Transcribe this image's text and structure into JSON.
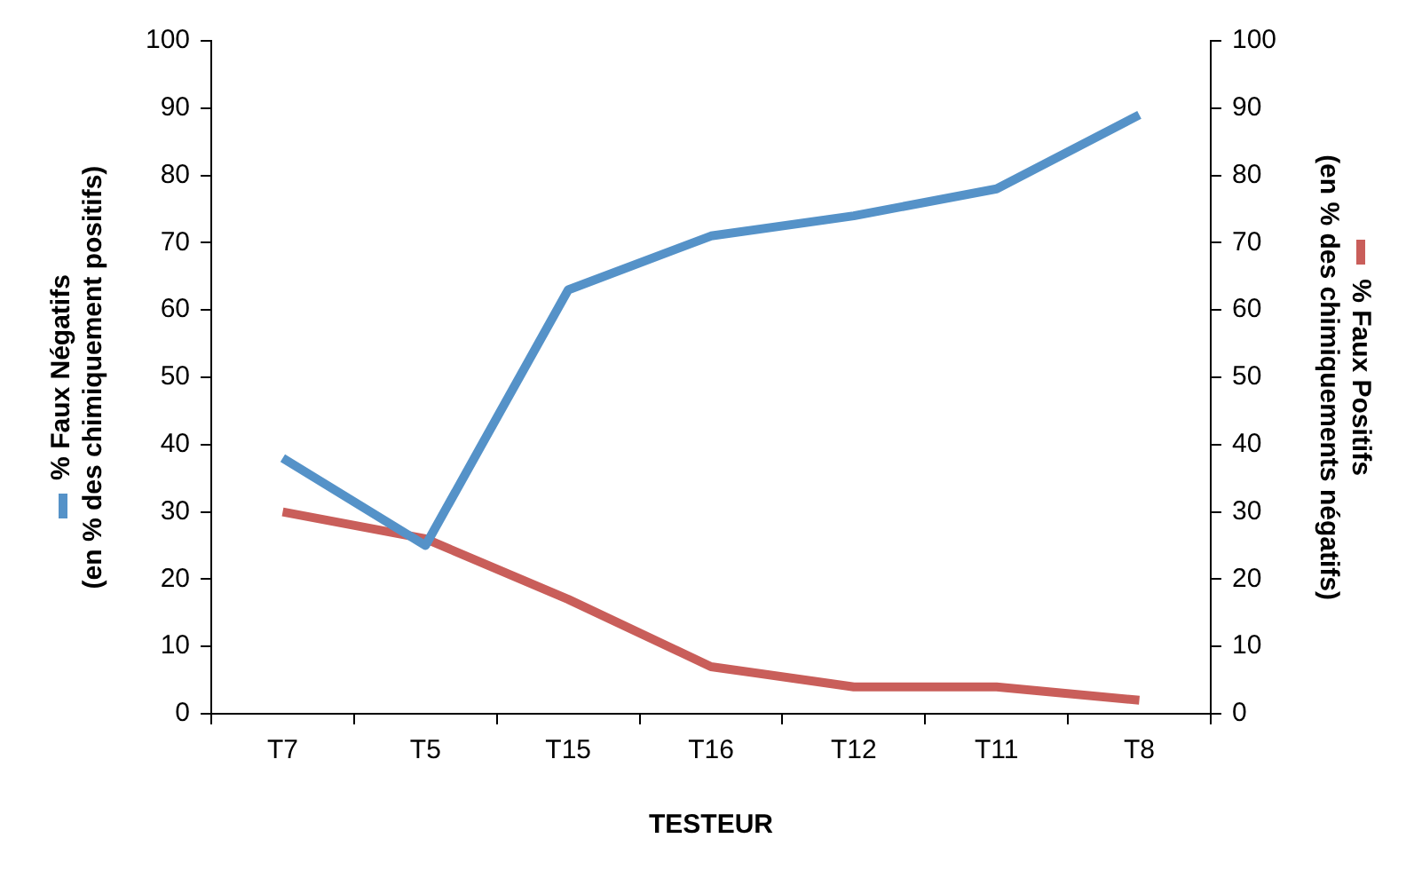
{
  "chart_data": {
    "type": "line",
    "xlabel": "TESTEUR",
    "ylabel": "% Faux Négatifs\n(en % des chimiquement positifs)",
    "y2label": "% Faux Positifs\n(en % des chimiquements négatifs)",
    "categories": [
      "T7",
      "T5",
      "T15",
      "T16",
      "T12",
      "T11",
      "T8"
    ],
    "series": [
      {
        "color": "#5592c8",
        "values": [
          38,
          25,
          63,
          71,
          74,
          78,
          89
        ]
      },
      {
        "color": "#c95e5a",
        "axis": "y2",
        "values": [
          30,
          26,
          17,
          7,
          4,
          4,
          2
        ]
      }
    ],
    "ylim": [
      0,
      100
    ],
    "yticks": [
      0,
      10,
      20,
      30,
      40,
      50,
      60,
      70,
      80,
      90,
      100
    ],
    "y2lim": [
      0,
      100
    ],
    "y2ticks": [
      0,
      10,
      20,
      30,
      40,
      50,
      60,
      70,
      80,
      90,
      100
    ],
    "grid": false,
    "legend": false,
    "marker": "none",
    "line_style": "solid"
  }
}
